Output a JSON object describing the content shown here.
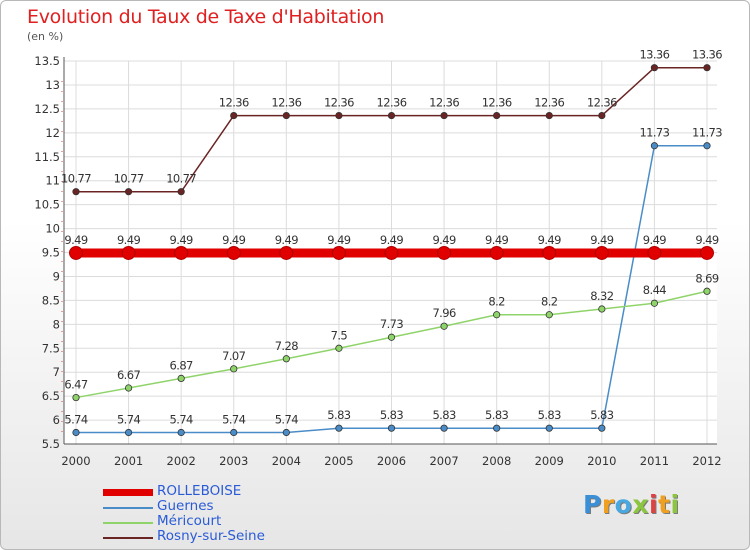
{
  "chart_data": {
    "type": "line",
    "title": "Evolution du Taux de Taxe d'Habitation",
    "unit": "(en %)",
    "x": [
      "2000",
      "2001",
      "2002",
      "2003",
      "2004",
      "2005",
      "2006",
      "2007",
      "2008",
      "2009",
      "2010",
      "2011",
      "2012"
    ],
    "ylim": [
      5.5,
      13.5
    ],
    "yticks": [
      "5.5",
      "6",
      "6.5",
      "7",
      "7.5",
      "8",
      "8.5",
      "9",
      "9.5",
      "10",
      "10.5",
      "11",
      "11.5",
      "12",
      "12.5",
      "13",
      "13.5"
    ],
    "grid": true,
    "legend_position": "bottom-left",
    "series": [
      {
        "name": "ROLLEBOISE",
        "color": "#e00000",
        "values": [
          9.49,
          9.49,
          9.49,
          9.49,
          9.49,
          9.49,
          9.49,
          9.49,
          9.49,
          9.49,
          9.49,
          9.49,
          9.49
        ],
        "labels": [
          "9.49",
          "9.49",
          "9.49",
          "9.49",
          "9.49",
          "9.49",
          "9.49",
          "9.49",
          "9.49",
          "9.49",
          "9.49",
          "9.49",
          "9.49"
        ]
      },
      {
        "name": "Guernes",
        "color": "#4a8cc7",
        "values": [
          5.74,
          5.74,
          5.74,
          5.74,
          5.74,
          5.83,
          5.83,
          5.83,
          5.83,
          5.83,
          5.83,
          11.73,
          11.73
        ],
        "labels": [
          "5.74",
          "5.74",
          "5.74",
          "5.74",
          "5.74",
          "5.83",
          "5.83",
          "5.83",
          "5.83",
          "5.83",
          "5.83",
          "11.73",
          "11.73"
        ]
      },
      {
        "name": "Méricourt",
        "color": "#8fd46a",
        "values": [
          6.47,
          6.67,
          6.87,
          7.07,
          7.28,
          7.5,
          7.73,
          7.96,
          8.2,
          8.2,
          8.32,
          8.44,
          8.69
        ],
        "labels": [
          "6.47",
          "6.67",
          "6.87",
          "7.07",
          "7.28",
          "7.5",
          "7.73",
          "7.96",
          "8.2",
          "8.2",
          "8.32",
          "8.44",
          "8.69"
        ]
      },
      {
        "name": "Rosny-sur-Seine",
        "color": "#6b2424",
        "values": [
          10.77,
          10.77,
          10.77,
          12.36,
          12.36,
          12.36,
          12.36,
          12.36,
          12.36,
          12.36,
          12.36,
          13.36,
          13.36
        ],
        "labels": [
          "10.77",
          "10.77",
          "10.77",
          "12.36",
          "12.36",
          "12.36",
          "12.36",
          "12.36",
          "12.36",
          "12.36",
          "12.36",
          "13.36",
          "13.36"
        ]
      }
    ]
  },
  "logo": {
    "letters": [
      {
        "ch": "P",
        "color": "#3a8fd6"
      },
      {
        "ch": "r",
        "color": "#f0a020"
      },
      {
        "ch": "o",
        "color": "#4aa8e0"
      },
      {
        "ch": "x",
        "color": "#8cc63f"
      },
      {
        "ch": "i",
        "color": "#e04040"
      },
      {
        "ch": "t",
        "color": "#f0a020"
      },
      {
        "ch": "i",
        "color": "#8cc63f"
      }
    ]
  }
}
